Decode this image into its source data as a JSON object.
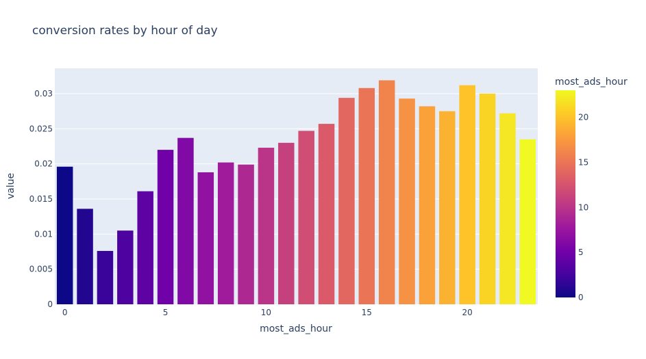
{
  "chart_data": {
    "type": "bar",
    "title": "conversion rates by hour of day",
    "xlabel": "most_ads_hour",
    "ylabel": "value",
    "x": [
      0,
      1,
      2,
      3,
      4,
      5,
      6,
      7,
      8,
      9,
      10,
      11,
      12,
      13,
      14,
      15,
      16,
      17,
      18,
      19,
      20,
      21,
      22,
      23
    ],
    "values": [
      0.0196,
      0.0136,
      0.0076,
      0.0105,
      0.0161,
      0.022,
      0.0237,
      0.0188,
      0.0202,
      0.0199,
      0.0223,
      0.023,
      0.0247,
      0.0257,
      0.0294,
      0.0308,
      0.0319,
      0.0293,
      0.0282,
      0.0275,
      0.0312,
      0.03,
      0.0272,
      0.0235
    ],
    "xticks": [
      0,
      5,
      10,
      15,
      20
    ],
    "xtick_labels": [
      "0",
      "5",
      "10",
      "15",
      "20"
    ],
    "yticks": [
      0,
      0.005,
      0.01,
      0.015,
      0.02,
      0.025,
      0.03
    ],
    "ytick_labels": [
      "0",
      "0.005",
      "0.01",
      "0.015",
      "0.02",
      "0.025",
      "0.03"
    ],
    "ylim": [
      0,
      0.0336
    ],
    "xlim": [
      -0.5,
      23.5
    ],
    "grid": true,
    "colorscale": "plasma",
    "colorbar": {
      "title": "most_ads_hour",
      "ticks": [
        0,
        5,
        10,
        15,
        20
      ],
      "tick_labels": [
        "0",
        "5",
        "10",
        "15",
        "20"
      ],
      "range": [
        0,
        23
      ]
    },
    "colors": {
      "plot_background": "#e5ecf6",
      "grid": "#ffffff",
      "text": "#2a3f5f"
    }
  }
}
